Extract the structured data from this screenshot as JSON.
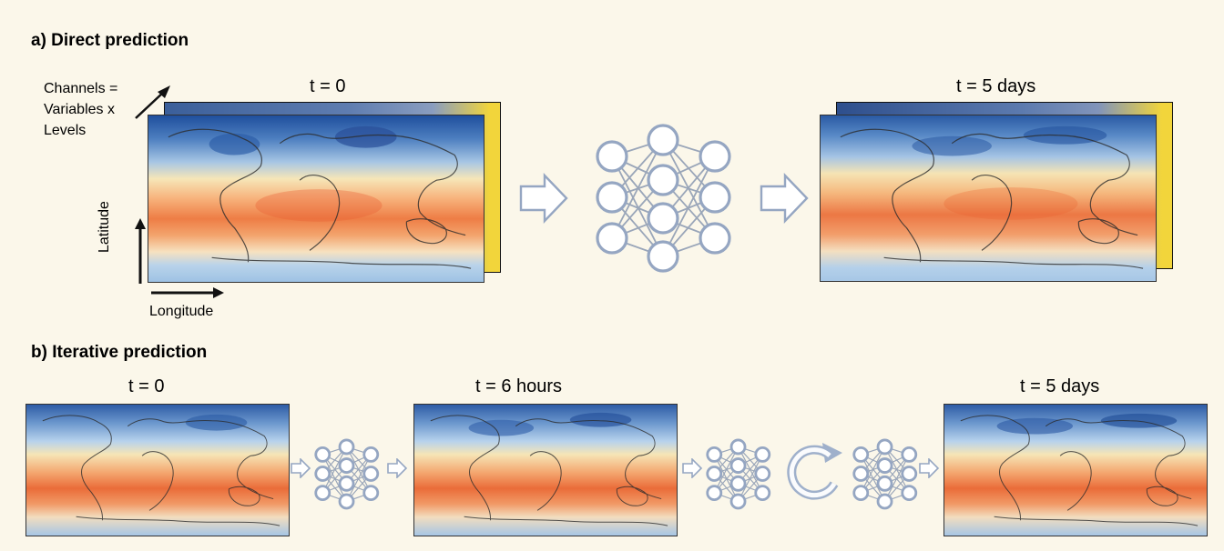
{
  "section_a": {
    "title": "a) Direct prediction",
    "input_time": "t = 0",
    "output_time": "t = 5 days",
    "channels_label": "Channels = Variables x Levels",
    "latitude_label": "Latitude",
    "longitude_label": "Longitude"
  },
  "section_b": {
    "title": "b) Iterative prediction",
    "time_labels": [
      "t = 0",
      "t = 6 hours",
      "t = 5 days"
    ]
  },
  "icons": {
    "neural_network": "neural-network-icon",
    "arrow": "right-arrow-icon",
    "loop": "repeat-loop-icon"
  },
  "colors": {
    "background": "#fbf7ea",
    "icon_stroke": "#8f9fbb",
    "cold": "#2b5aa8",
    "warm": "#e8663a"
  }
}
